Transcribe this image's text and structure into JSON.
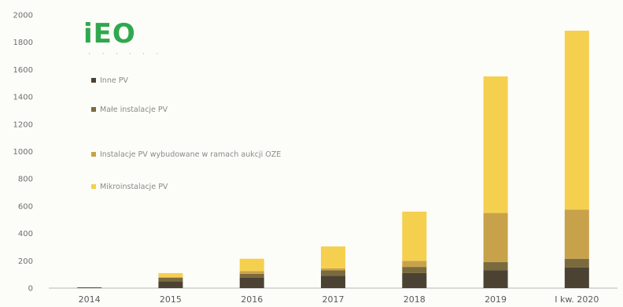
{
  "logo": {
    "text": "iEO",
    "subtext": "· · · · · ·",
    "color": "#2fa84f"
  },
  "chart_data": {
    "type": "bar",
    "stacked": true,
    "categories": [
      "2014",
      "2015",
      "2016",
      "2017",
      "2018",
      "2019",
      "I kw. 2020"
    ],
    "ylim": [
      0,
      2000
    ],
    "yticks": [
      0,
      200,
      400,
      600,
      800,
      1000,
      1200,
      1400,
      1600,
      1800,
      2000
    ],
    "title": "",
    "xlabel": "",
    "ylabel": "",
    "legend_position": "top-left",
    "grid": false,
    "series": [
      {
        "name": "Inne PV",
        "color": "#4b4233",
        "values": [
          3,
          50,
          75,
          90,
          110,
          130,
          150
        ]
      },
      {
        "name": "Małe instalacje PV",
        "color": "#7a6a3e",
        "values": [
          3,
          25,
          30,
          40,
          45,
          60,
          65
        ]
      },
      {
        "name": "Instalacje PV wybudowane w ramach aukcji OZE",
        "color": "#c8a24a",
        "values": [
          0,
          5,
          20,
          15,
          45,
          360,
          360
        ]
      },
      {
        "name": "Mikroinstalacje PV",
        "color": "#f5d04e",
        "values": [
          0,
          30,
          90,
          160,
          360,
          1000,
          1310
        ]
      }
    ]
  }
}
